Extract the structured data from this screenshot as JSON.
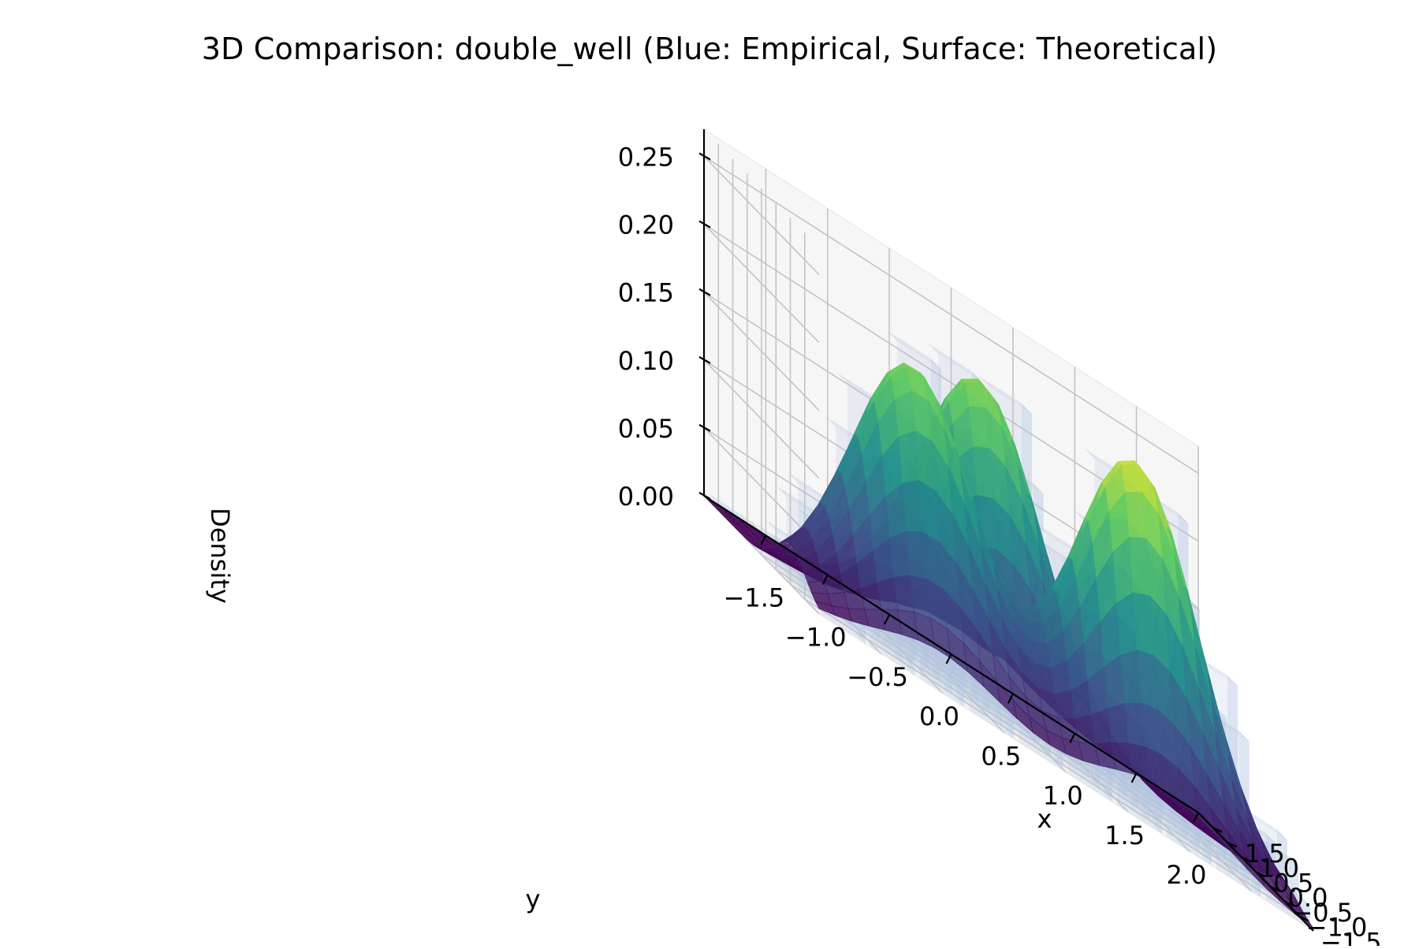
{
  "chart_data": {
    "type": "surface3d",
    "title": "3D Comparison: double_well (Blue: Empirical, Surface: Theoretical)",
    "xlabel": "x",
    "ylabel": "y",
    "zlabel": "Density",
    "x_ticks": [
      "−1.5",
      "−1.0",
      "−0.5",
      "0.0",
      "0.5",
      "1.0",
      "1.5"
    ],
    "x_tick_values": [
      -1.5,
      -1.0,
      -0.5,
      0.0,
      0.5,
      1.0,
      1.5
    ],
    "y_ticks": [
      "−1.5",
      "−1.0",
      "−0.5",
      "0.0",
      "0.5",
      "1.0",
      "1.5",
      "2.0"
    ],
    "y_tick_values": [
      -1.5,
      -1.0,
      -0.5,
      0.0,
      0.5,
      1.0,
      1.5,
      2.0
    ],
    "z_ticks": [
      "0.00",
      "0.05",
      "0.10",
      "0.15",
      "0.20",
      "0.25"
    ],
    "z_tick_values": [
      0.0,
      0.05,
      0.1,
      0.15,
      0.2,
      0.25
    ],
    "xlim": [
      -2.0,
      2.0
    ],
    "ylim": [
      -2.0,
      2.0
    ],
    "zlim": [
      0.0,
      0.27
    ],
    "grid": true,
    "colormap": "viridis",
    "series": [
      {
        "kind": "histogram-bars",
        "color": "#b0c4de",
        "peaks": [
          {
            "x": -1.0,
            "y": -1.0,
            "z": 0.23
          },
          {
            "x": -1.0,
            "y": 0.8,
            "z": 0.25
          },
          {
            "x": 1.0,
            "y": 0.0,
            "z": 0.24
          }
        ]
      },
      {
        "kind": "surface",
        "peaks": [
          {
            "x": -1.0,
            "y": -1.0,
            "z": 0.22
          },
          {
            "x": -1.0,
            "y": 0.8,
            "z": 0.255
          },
          {
            "x": 1.0,
            "y": 0.0,
            "z": 0.225
          }
        ],
        "valley_between_peaks_z": 0.195
      }
    ],
    "colors": {
      "surface_low": "#440154",
      "surface_mid": "#21918c",
      "surface_high": "#fde725",
      "bars": "#b0c4de"
    }
  }
}
